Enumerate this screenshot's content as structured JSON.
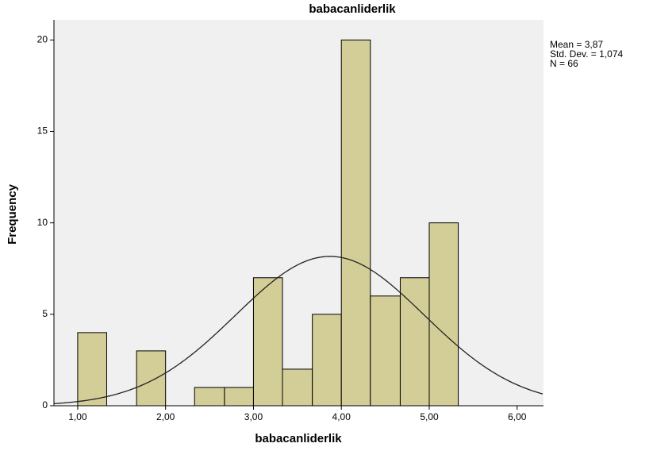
{
  "chart_data": {
    "type": "histogram",
    "title": "babacanliderlik",
    "x_label": "babacanliderlik",
    "y_label": "Frequency",
    "bins": [
      1.0,
      1.33,
      1.67,
      2.0,
      2.33,
      2.67,
      3.0,
      3.33,
      3.67,
      4.0,
      4.33,
      4.67,
      5.0,
      5.33
    ],
    "values": [
      4,
      0,
      3,
      0,
      1,
      1,
      7,
      2,
      5,
      20,
      6,
      7,
      10
    ],
    "color": "#d3ce97",
    "xlim": [
      0.73,
      6.3
    ],
    "xticks": [
      {
        "value": 1,
        "label": "1,00"
      },
      {
        "value": 2,
        "label": "2,00"
      },
      {
        "value": 3,
        "label": "3,00"
      },
      {
        "value": 4,
        "label": "4,00"
      },
      {
        "value": 5,
        "label": "5,00"
      },
      {
        "value": 6,
        "label": "6,00"
      }
    ],
    "ylim": [
      0,
      21.1
    ],
    "yticks": [
      0,
      5,
      10,
      15,
      20
    ],
    "normal_curve": {
      "mean": 3.87,
      "std_dev": 1.074,
      "n": 66
    },
    "annotations": [
      "Mean = 3,87",
      "Std. Dev. = 1,074",
      "N = 66"
    ]
  }
}
